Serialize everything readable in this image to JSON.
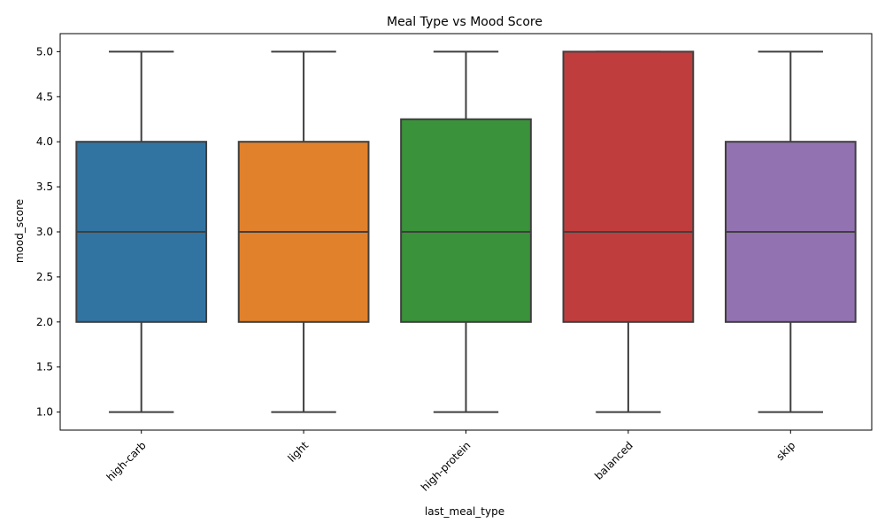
{
  "chart_data": {
    "type": "box",
    "title": "Meal Type vs Mood Score",
    "xlabel": "last_meal_type",
    "ylabel": "mood_score",
    "ylim": [
      0.8,
      5.2
    ],
    "yticks": [
      1.0,
      1.5,
      2.0,
      2.5,
      3.0,
      3.5,
      4.0,
      4.5,
      5.0
    ],
    "ytick_labels": [
      "1.0",
      "1.5",
      "2.0",
      "2.5",
      "3.0",
      "3.5",
      "4.0",
      "4.5",
      "5.0"
    ],
    "grid": false,
    "legend": "none",
    "categories": [
      "high-carb",
      "light",
      "high-protein",
      "balanced",
      "skip"
    ],
    "boxes": [
      {
        "category": "high-carb",
        "min": 1.0,
        "q1": 2.0,
        "median": 3.0,
        "q3": 4.0,
        "max": 5.0,
        "color": "#3274a1"
      },
      {
        "category": "light",
        "min": 1.0,
        "q1": 2.0,
        "median": 3.0,
        "q3": 4.0,
        "max": 5.0,
        "color": "#e1812c"
      },
      {
        "category": "high-protein",
        "min": 1.0,
        "q1": 2.0,
        "median": 3.0,
        "q3": 4.25,
        "max": 5.0,
        "color": "#3a923a"
      },
      {
        "category": "balanced",
        "min": 1.0,
        "q1": 2.0,
        "median": 3.0,
        "q3": 5.0,
        "max": 5.0,
        "color": "#c03d3e"
      },
      {
        "category": "skip",
        "min": 1.0,
        "q1": 2.0,
        "median": 3.0,
        "q3": 4.0,
        "max": 5.0,
        "color": "#9372b2"
      }
    ]
  }
}
